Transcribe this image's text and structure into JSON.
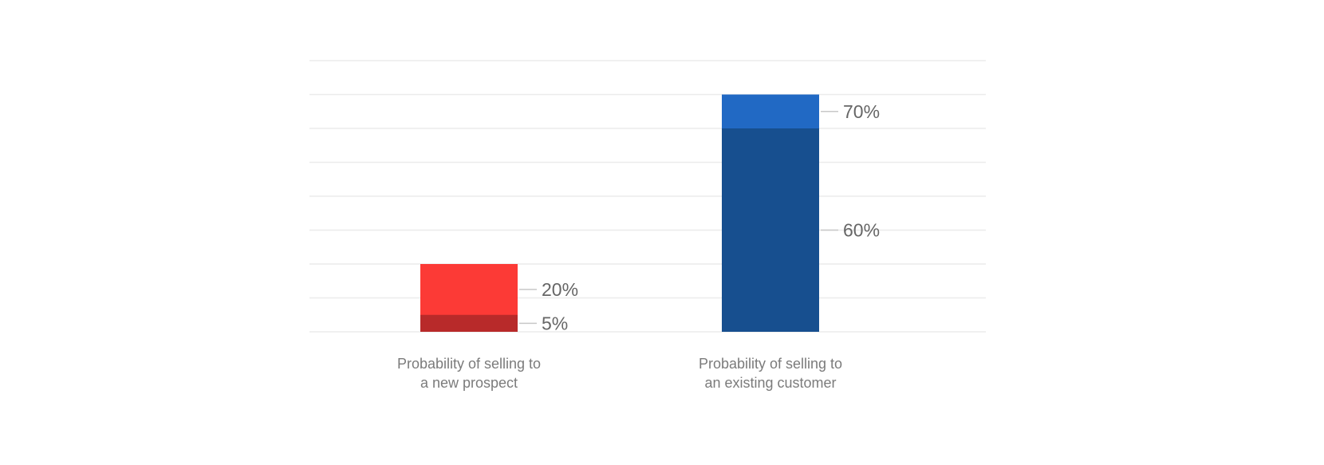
{
  "chart_data": {
    "type": "bar",
    "title": "",
    "xlabel": "",
    "ylabel": "",
    "ylim": [
      0,
      80
    ],
    "grid": true,
    "legend": "none",
    "categories": [
      "Probability of selling to a new prospect",
      "Probability of selling to an existing customer"
    ],
    "bars": [
      {
        "category_lines": [
          "Probability of selling to",
          "a new prospect"
        ],
        "segments": [
          {
            "value": 5,
            "label": "5%",
            "color": "#b82a2a"
          },
          {
            "value": 20,
            "label": "20%",
            "color": "#fc3a36"
          }
        ]
      },
      {
        "category_lines": [
          "Probability of selling to",
          "an existing customer"
        ],
        "segments": [
          {
            "value": 60,
            "label": "60%",
            "color": "#174f8f"
          },
          {
            "value": 70,
            "label": "70%",
            "color": "#2169c4"
          }
        ]
      }
    ]
  }
}
